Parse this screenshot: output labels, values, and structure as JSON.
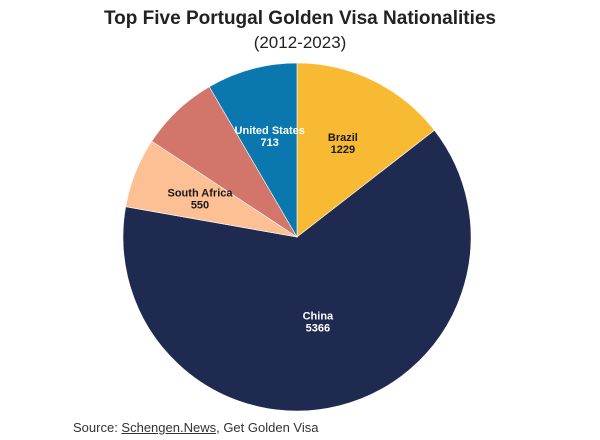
{
  "chart_data": {
    "type": "pie",
    "title": "Top Five Portugal Golden Visa Nationalities",
    "subtitle": "(2012-2023)",
    "slices": [
      {
        "label": "Brazil",
        "value": 1229,
        "value_label": "1229",
        "color": "#F7BA32"
      },
      {
        "label": "China",
        "value": 5366,
        "value_label": "5366",
        "color": "#1F2A50"
      },
      {
        "label": "South Africa",
        "value": 550,
        "value_label": "550",
        "color": "#FDBF94"
      },
      {
        "label": "",
        "value": 620,
        "value_label": "",
        "color": "#D2756B"
      },
      {
        "label": "United States",
        "value": 713,
        "value_label": "713",
        "color": "#0A78AE"
      }
    ],
    "start_angle_deg": 0,
    "direction": "clockwise"
  },
  "footer": {
    "source_prefix": "Source: ",
    "source_link": "Schengen.News",
    "source_suffix": ", Get Golden Visa"
  }
}
